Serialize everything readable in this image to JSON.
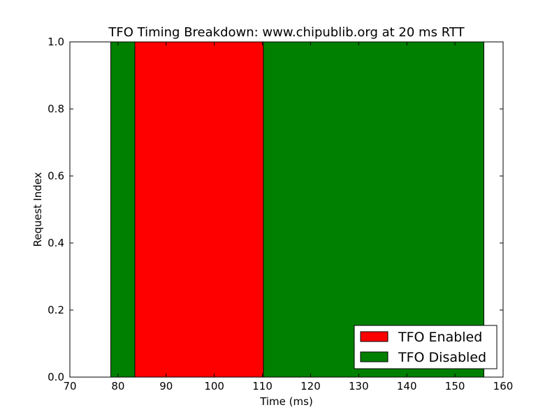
{
  "chart_data": {
    "type": "bar",
    "orientation": "horizontal-spans",
    "title": "TFO Timing Breakdown: www.chipublib.org at 20 ms RTT",
    "xlabel": "Time (ms)",
    "ylabel": "Request Index",
    "xlim": [
      70,
      160
    ],
    "ylim": [
      0.0,
      1.0
    ],
    "x_ticks": [
      70,
      80,
      90,
      100,
      110,
      120,
      130,
      140,
      150,
      160
    ],
    "y_ticks": [
      "0.0",
      "0.2",
      "0.4",
      "0.6",
      "0.8",
      "1.0"
    ],
    "grid": false,
    "legend_position": "bottom-right",
    "series": [
      {
        "name": "TFO Disabled",
        "color": "#008000",
        "spans": [
          [
            78.5,
            156.0
          ]
        ]
      },
      {
        "name": "TFO Enabled",
        "color": "#ff0000",
        "spans": [
          [
            83.5,
            110.2
          ]
        ]
      }
    ],
    "legend": [
      {
        "name": "TFO Enabled",
        "color": "#ff0000"
      },
      {
        "name": "TFO Disabled",
        "color": "#008000"
      }
    ]
  }
}
